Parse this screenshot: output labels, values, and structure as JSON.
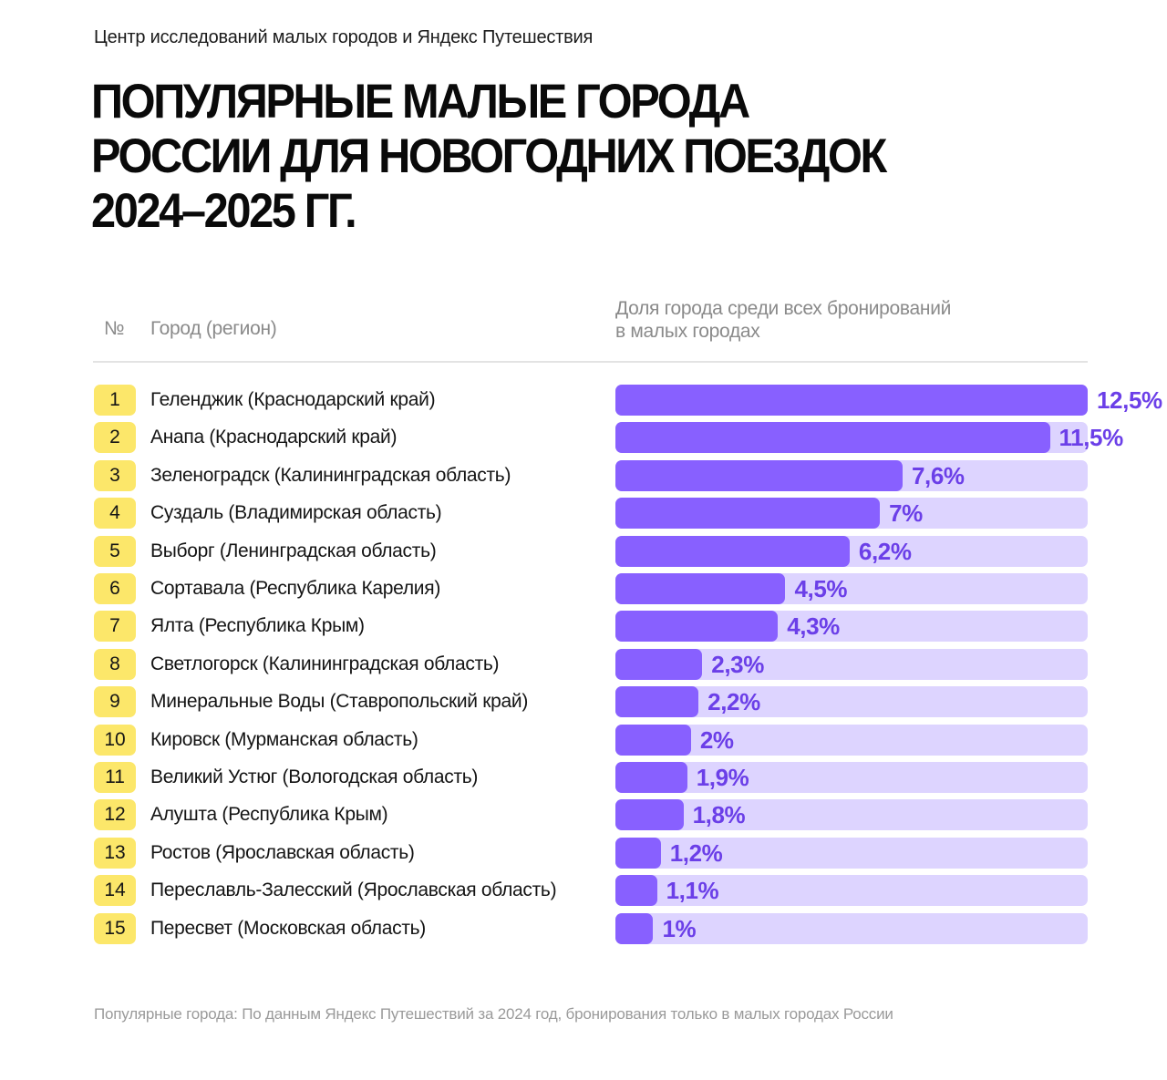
{
  "source_line": "Центр исследований малых городов и Яндекс Путешествия",
  "title_lines": [
    "ПОПУЛЯРНЫЕ МАЛЫЕ ГОРОДА",
    "РОССИИ ДЛЯ НОВОГОДНИХ ПОЕЗДОК",
    "2024–2025 ГГ."
  ],
  "headers": {
    "number": "№",
    "city": "Город (регион)",
    "share_line1": "Доля города среди всех бронирований",
    "share_line2": "в малых городах"
  },
  "footnote": "Популярные города: По данным Яндекс Путешествий за 2024 год, бронирования только в малых городах России",
  "colors": {
    "rank_badge": "#fce76a",
    "bar_fill": "#8860ff",
    "bar_track": "#ddd4ff",
    "value_text": "#6b3fe8"
  },
  "chart_data": {
    "type": "bar",
    "orientation": "horizontal",
    "xlim": [
      0,
      12.5
    ],
    "unit": "%",
    "ranks": [
      "1",
      "2",
      "3",
      "4",
      "5",
      "6",
      "7",
      "8",
      "9",
      "10",
      "11",
      "12",
      "13",
      "14",
      "15"
    ],
    "categories": [
      "Геленджик (Краснодарский край)",
      "Анапа (Краснодарский край)",
      "Зеленоградск (Калининградская область)",
      "Суздаль (Владимирская область)",
      "Выборг (Ленинградская область)",
      "Сортавала (Республика Карелия)",
      "Ялта (Республика Крым)",
      "Светлогорск (Калининградская область)",
      "Минеральные Воды (Ставропольский край)",
      "Кировск (Мурманская область)",
      "Великий Устюг (Вологодская область)",
      "Алушта (Республика Крым)",
      "Ростов (Ярославская область)",
      "Переславль-Залесский (Ярославская область)",
      "Пересвет (Московская область)"
    ],
    "values": [
      12.5,
      11.5,
      7.6,
      7,
      6.2,
      4.5,
      4.3,
      2.3,
      2.2,
      2,
      1.9,
      1.8,
      1.2,
      1.1,
      1
    ],
    "value_labels": [
      "12,5%",
      "11,5%",
      "7,6%",
      "7%",
      "6,2%",
      "4,5%",
      "4,3%",
      "2,3%",
      "2,2%",
      "2%",
      "1,9%",
      "1,8%",
      "1,2%",
      "1,1%",
      "1%"
    ]
  }
}
